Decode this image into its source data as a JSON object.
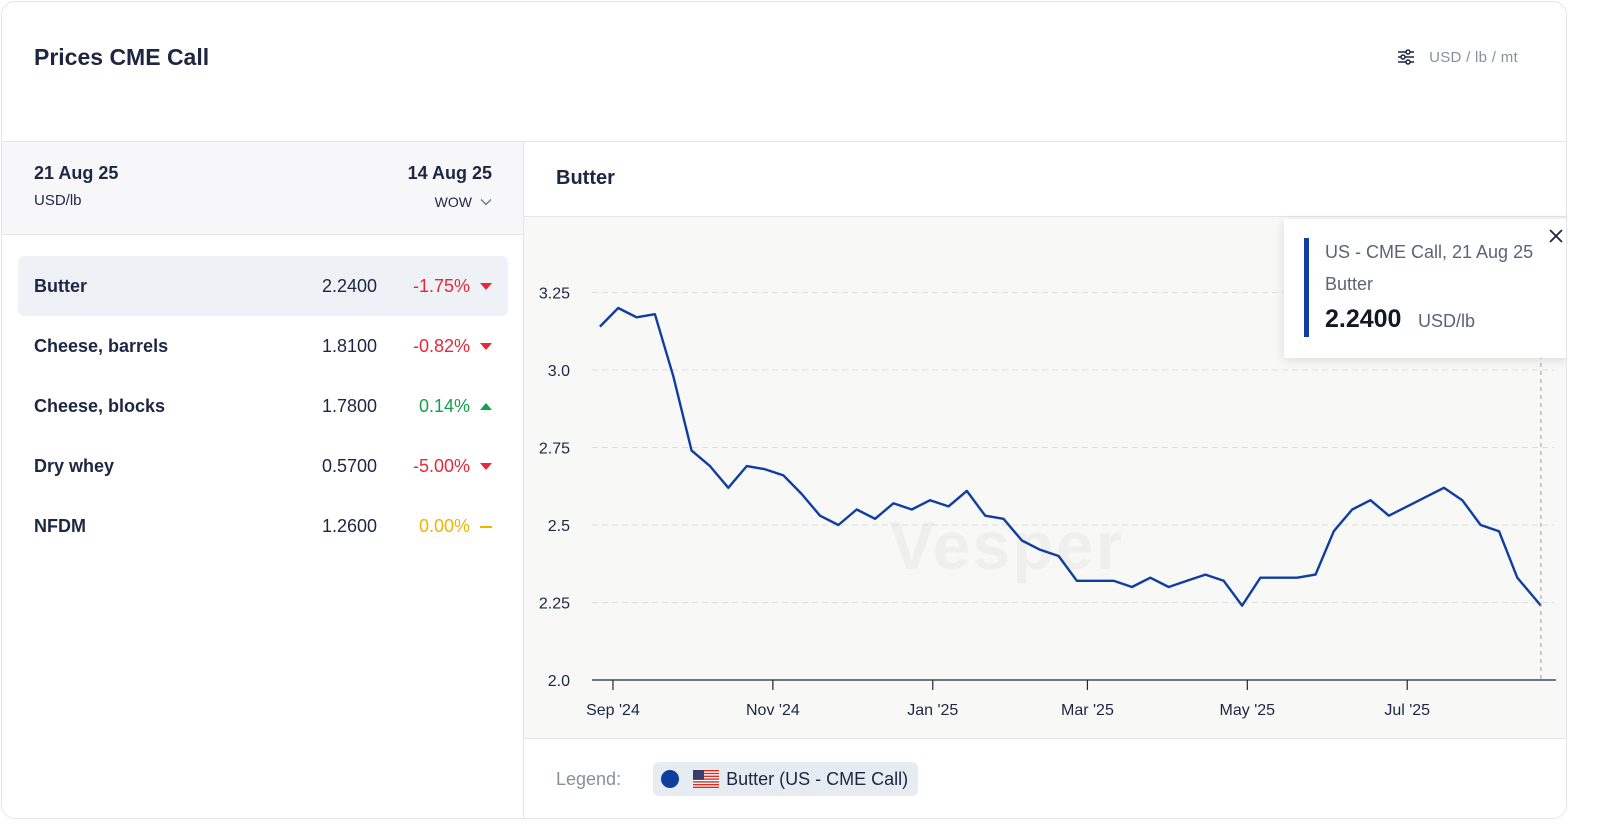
{
  "header": {
    "title": "Prices CME Call",
    "units_label": "USD / lb / mt"
  },
  "summary": {
    "current_date": "21 Aug 25",
    "unit": "USD/lb",
    "compare_date": "14 Aug 25",
    "compare_mode": "WOW"
  },
  "products": [
    {
      "name": "Butter",
      "value": "2.2400",
      "change": "-1.75%",
      "direction": "down",
      "selected": true
    },
    {
      "name": "Cheese, barrels",
      "value": "1.8100",
      "change": "-0.82%",
      "direction": "down",
      "selected": false
    },
    {
      "name": "Cheese, blocks",
      "value": "1.7800",
      "change": "0.14%",
      "direction": "up",
      "selected": false
    },
    {
      "name": "Dry whey",
      "value": "0.5700",
      "change": "-5.00%",
      "direction": "down",
      "selected": false
    },
    {
      "name": "NFDM",
      "value": "1.2600",
      "change": "0.00%",
      "direction": "flat",
      "selected": false
    }
  ],
  "colors": {
    "down": "#e8283a",
    "up": "#12a24a",
    "flat": "#f0b400",
    "series": "#0f3ea0"
  },
  "chart": {
    "title": "Butter",
    "watermark": "Vesper",
    "tooltip": {
      "heading": "US - CME Call, 21 Aug 25",
      "series": "Butter",
      "value": "2.2400",
      "unit": "USD/lb"
    },
    "legend_label": "Legend:",
    "legend_item": "Butter (US - CME Call)"
  },
  "chart_data": {
    "type": "line",
    "title": "Butter",
    "xlabel": "",
    "ylabel": "",
    "ylim": [
      2.0,
      3.3
    ],
    "yticks": [
      "2.0",
      "2.25",
      "2.5",
      "2.75",
      "3.0",
      "3.25"
    ],
    "xticks": [
      "Sep '24",
      "Nov '24",
      "Jan '25",
      "Mar '25",
      "May '25",
      "Jul '25"
    ],
    "grid": true,
    "series": [
      {
        "name": "Butter (US - CME Call)",
        "x": [
          "2024-08-27",
          "2024-09-03",
          "2024-09-10",
          "2024-09-17",
          "2024-09-24",
          "2024-10-01",
          "2024-10-08",
          "2024-10-15",
          "2024-10-22",
          "2024-10-29",
          "2024-11-05",
          "2024-11-12",
          "2024-11-19",
          "2024-11-26",
          "2024-12-03",
          "2024-12-10",
          "2024-12-17",
          "2024-12-24",
          "2024-12-31",
          "2025-01-07",
          "2025-01-14",
          "2025-01-21",
          "2025-01-28",
          "2025-02-04",
          "2025-02-11",
          "2025-02-18",
          "2025-02-25",
          "2025-03-04",
          "2025-03-11",
          "2025-03-18",
          "2025-03-25",
          "2025-04-01",
          "2025-04-08",
          "2025-04-15",
          "2025-04-22",
          "2025-04-29",
          "2025-05-06",
          "2025-05-13",
          "2025-05-20",
          "2025-05-27",
          "2025-06-03",
          "2025-06-10",
          "2025-06-17",
          "2025-06-24",
          "2025-07-01",
          "2025-07-08",
          "2025-07-15",
          "2025-07-22",
          "2025-07-29",
          "2025-08-05",
          "2025-08-12",
          "2025-08-21"
        ],
        "y": [
          3.14,
          3.2,
          3.17,
          3.18,
          2.98,
          2.74,
          2.69,
          2.62,
          2.69,
          2.68,
          2.66,
          2.6,
          2.53,
          2.5,
          2.55,
          2.52,
          2.57,
          2.55,
          2.58,
          2.56,
          2.61,
          2.53,
          2.52,
          2.45,
          2.42,
          2.4,
          2.32,
          2.32,
          2.32,
          2.3,
          2.33,
          2.3,
          2.32,
          2.34,
          2.32,
          2.24,
          2.33,
          2.33,
          2.33,
          2.34,
          2.48,
          2.55,
          2.58,
          2.53,
          2.56,
          2.59,
          2.62,
          2.58,
          2.5,
          2.48,
          2.33,
          2.24
        ]
      }
    ]
  }
}
